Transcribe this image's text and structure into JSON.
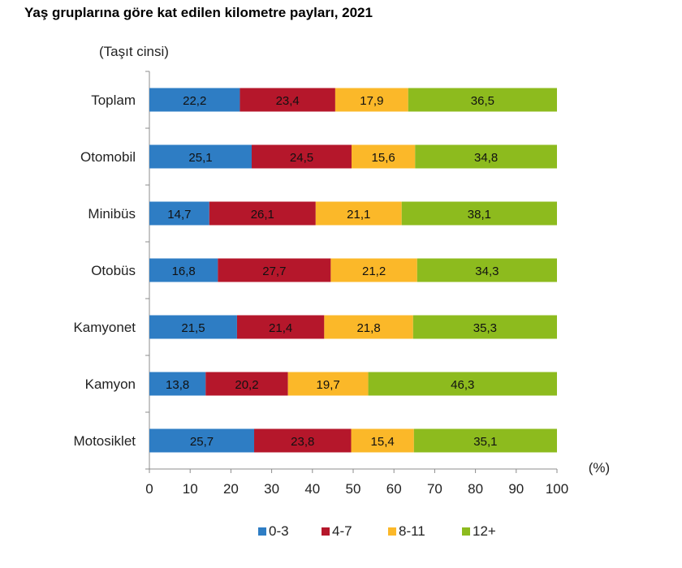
{
  "chart_data": {
    "type": "bar",
    "orientation": "horizontal",
    "stacked": true,
    "title": "Yaş gruplarına göre kat edilen kilometre payları, 2021",
    "ylabel": "(Taşıt cinsi)",
    "xlabel": "(%)",
    "xlim": [
      0,
      100
    ],
    "xticks": [
      "0",
      "10",
      "20",
      "30",
      "40",
      "50",
      "60",
      "70",
      "80",
      "90",
      "100"
    ],
    "categories": [
      "Toplam",
      "Otomobil",
      "Minibüs",
      "Otobüs",
      "Kamyonet",
      "Kamyon",
      "Motosiklet"
    ],
    "series": [
      {
        "name": "0-3",
        "color": "#2e7dc4",
        "values": [
          22.2,
          25.1,
          14.7,
          16.8,
          21.5,
          13.8,
          25.7
        ],
        "labels": [
          "22,2",
          "25,1",
          "14,7",
          "16,8",
          "21,5",
          "13,8",
          "25,7"
        ]
      },
      {
        "name": "4-7",
        "color": "#b5172b",
        "values": [
          23.4,
          24.5,
          26.1,
          27.7,
          21.4,
          20.2,
          23.8
        ],
        "labels": [
          "23,4",
          "24,5",
          "26,1",
          "27,7",
          "21,4",
          "20,2",
          "23,8"
        ]
      },
      {
        "name": "8-11",
        "color": "#fbb829",
        "values": [
          17.9,
          15.6,
          21.1,
          21.2,
          21.8,
          19.7,
          15.4
        ],
        "labels": [
          "17,9",
          "15,6",
          "21,1",
          "21,2",
          "21,8",
          "19,7",
          "15,4"
        ]
      },
      {
        "name": "12+",
        "color": "#8dbb1e",
        "values": [
          36.5,
          34.8,
          38.1,
          34.3,
          35.3,
          46.3,
          35.1
        ],
        "labels": [
          "36,5",
          "34,8",
          "38,1",
          "34,3",
          "35,3",
          "46,3",
          "35,1"
        ]
      }
    ],
    "legend_position": "bottom",
    "grid": false
  }
}
